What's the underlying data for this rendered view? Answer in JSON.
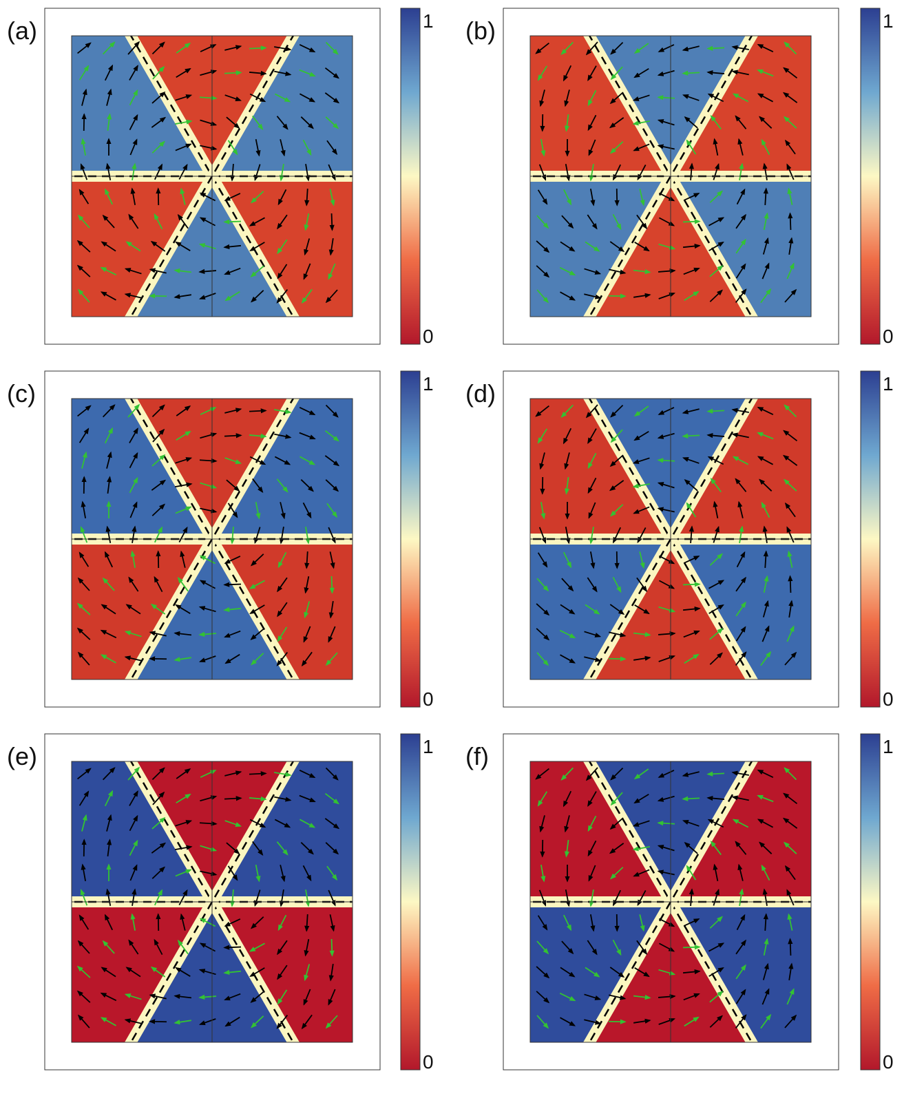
{
  "panels": [
    {
      "label": "(a)",
      "colorbar": {
        "ticks": [
          0,
          1
        ]
      }
    },
    {
      "label": "(b)",
      "colorbar": {
        "ticks": [
          0,
          1
        ]
      }
    },
    {
      "label": "(c)",
      "colorbar": {
        "ticks": [
          0,
          1
        ]
      }
    },
    {
      "label": "(d)",
      "colorbar": {
        "ticks": [
          0,
          1
        ]
      }
    },
    {
      "label": "(e)",
      "colorbar": {
        "ticks": [
          0,
          1
        ]
      }
    },
    {
      "label": "(f)",
      "colorbar": {
        "ticks": [
          0,
          1
        ]
      }
    }
  ]
}
